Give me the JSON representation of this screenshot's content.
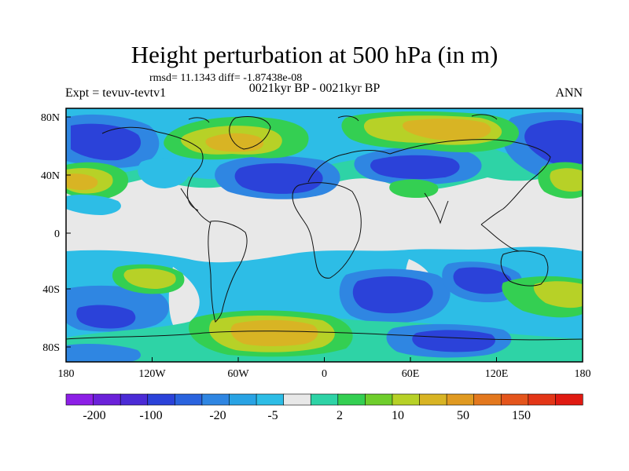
{
  "title": "Height perturbation at 500 hPa (in m)",
  "stats": "rmsd= 11.1343 diff= -1.87438e-08",
  "experiment": "Expt = tevuv-tevtv1",
  "period": "0021kyr BP - 0021kyr BP",
  "season": "ANN",
  "x_ticks": [
    "180",
    "120W",
    "60W",
    "0",
    "60E",
    "120E",
    "180"
  ],
  "y_ticks": [
    "80N",
    "40N",
    "0",
    "40S",
    "80S"
  ],
  "colorbar": {
    "labels": [
      "-200",
      "-100",
      "-20",
      "-5",
      "2",
      "10",
      "50",
      "150"
    ],
    "colors": [
      "#8c1fe6",
      "#6b21d9",
      "#4b2bd6",
      "#2b42d9",
      "#2a63de",
      "#2f86e2",
      "#29a3e4",
      "#2dbde6",
      "#e8e8e8",
      "#2ed3a6",
      "#34cf52",
      "#6fce2c",
      "#b7d127",
      "#d8b424",
      "#e09a21",
      "#e3781e",
      "#e4551c",
      "#e33617",
      "#e01a12"
    ]
  },
  "map_colors": {
    "neutral": "#e8e8e8",
    "light_blue": "#2dbde6",
    "blue": "#2f86e2",
    "dark_blue": "#2b42d9",
    "teal": "#2ed3a6",
    "green": "#34cf52",
    "yellow_green": "#b7d127",
    "orange": "#d8b424",
    "dark_orange": "#e09a21"
  }
}
